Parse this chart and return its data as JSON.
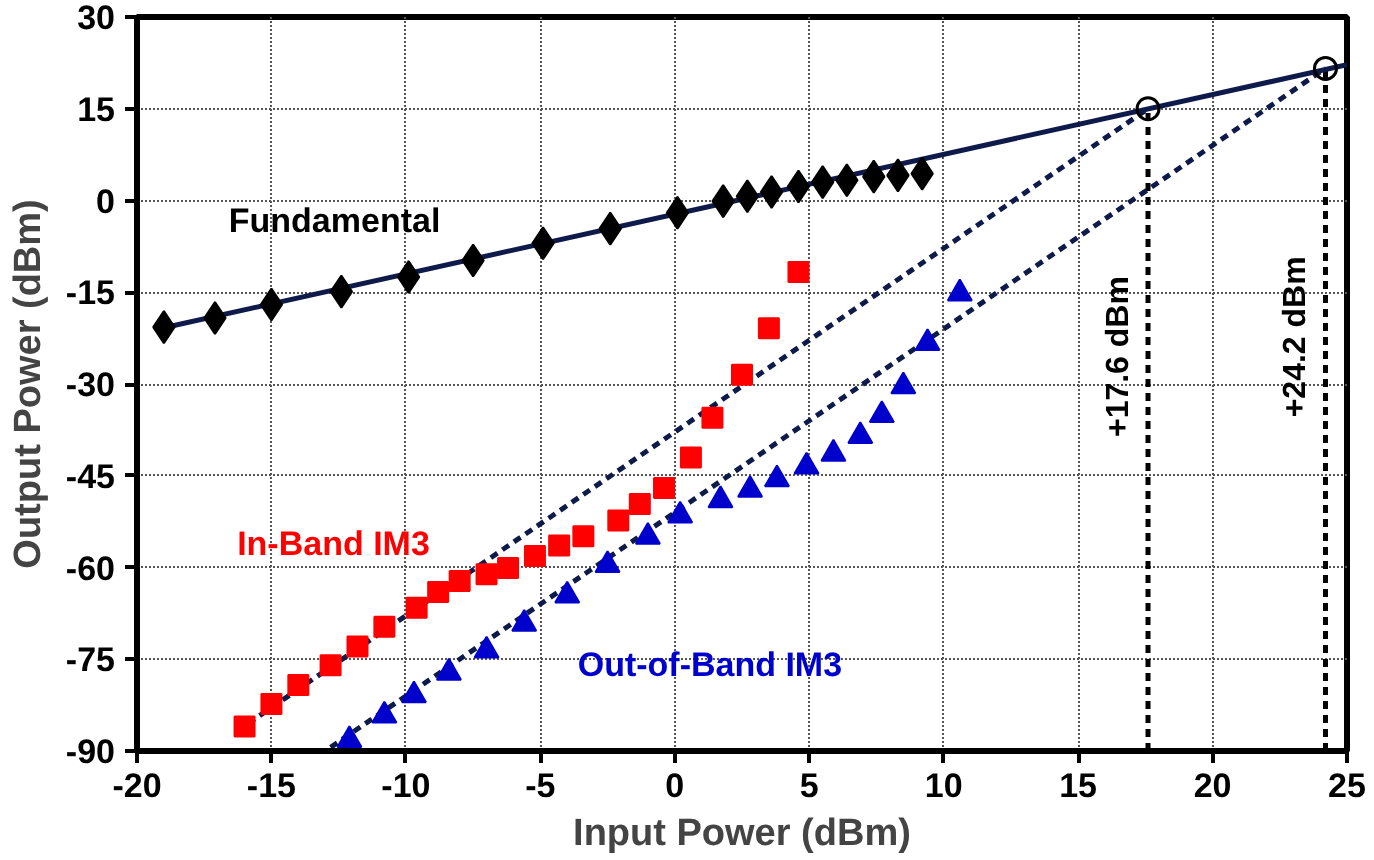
{
  "chart_data": {
    "type": "scatter",
    "xlabel": "Input Power (dBm)",
    "ylabel": "Output Power (dBm)",
    "xlim": [
      -20,
      25
    ],
    "xticks": [
      -20,
      -15,
      -10,
      -5,
      0,
      5,
      10,
      15,
      20,
      25
    ],
    "ylim": [
      -90,
      30
    ],
    "yticks": [
      -90,
      -75,
      -60,
      -45,
      -30,
      -15,
      0,
      15,
      30
    ],
    "grid": true,
    "series": [
      {
        "type": "line",
        "color": "#0d1a4a",
        "line_style": "solid",
        "x": [
          -19.0,
          25.0
        ],
        "values": [
          -20.8,
          22.2
        ]
      },
      {
        "type": "line",
        "color": "#0d1a4a",
        "line_style": "dashed",
        "x": [
          -16.3,
          17.6
        ],
        "values": [
          -86.8,
          15.0
        ]
      },
      {
        "type": "line",
        "color": "#0d1a4a",
        "line_style": "dashed",
        "x": [
          -12.8,
          24.2
        ],
        "values": [
          -89.4,
          21.6
        ]
      },
      {
        "name": "Fundamental",
        "color": "#000000",
        "marker": "diamond",
        "x": [
          -19.0,
          -17.1,
          -15.0,
          -12.4,
          -9.9,
          -7.5,
          -4.9,
          -2.4,
          0.1,
          1.8,
          2.7,
          3.6,
          4.6,
          5.5,
          6.4,
          7.4,
          8.3,
          9.2
        ],
        "values": [
          -20.7,
          -19.2,
          -17.0,
          -14.9,
          -12.5,
          -9.8,
          -7.0,
          -4.6,
          -2.0,
          -0.1,
          0.7,
          1.4,
          2.3,
          3.0,
          3.3,
          3.9,
          4.1,
          4.4
        ]
      },
      {
        "name": "In-Band IM3",
        "color": "#ff0000",
        "marker": "square",
        "x": [
          -16.0,
          -15.0,
          -14.0,
          -12.8,
          -11.8,
          -10.8,
          -9.6,
          -8.8,
          -8.0,
          -7.0,
          -6.2,
          -5.2,
          -4.3,
          -3.4,
          -2.1,
          -1.3,
          -0.4,
          0.6,
          1.4,
          2.5,
          3.5,
          4.6
        ],
        "values": [
          -86.0,
          -82.3,
          -79.2,
          -76.0,
          -72.9,
          -69.7,
          -66.6,
          -64.0,
          -62.2,
          -61.1,
          -60.1,
          -58.1,
          -56.4,
          -54.9,
          -52.3,
          -49.6,
          -47.0,
          -42.0,
          -35.5,
          -28.5,
          -20.9,
          -11.7
        ]
      },
      {
        "name": "Out-of-Band IM3",
        "color": "#0000cc",
        "marker": "triangle",
        "x": [
          -12.1,
          -10.8,
          -9.7,
          -8.4,
          -7.0,
          -5.6,
          -4.0,
          -2.5,
          -1.0,
          0.2,
          1.7,
          2.8,
          3.8,
          4.9,
          5.9,
          6.9,
          7.7,
          8.5,
          9.4,
          10.6
        ],
        "values": [
          -88.2,
          -84.2,
          -80.9,
          -77.2,
          -73.6,
          -69.2,
          -64.6,
          -59.6,
          -55.0,
          -51.5,
          -49.0,
          -47.3,
          -45.6,
          -43.5,
          -41.4,
          -38.5,
          -35.1,
          -30.4,
          -23.3,
          -15.2
        ]
      },
      {
        "color": "#000000",
        "marker": "circle",
        "x": [
          17.6,
          24.2
        ],
        "values": [
          15.0,
          21.6
        ]
      }
    ],
    "ref_lines": [
      {
        "axis": "x",
        "value": 17.6,
        "label": "+17.6 dBm",
        "color": "#000000",
        "line_style": "dashed"
      },
      {
        "axis": "x",
        "value": 24.2,
        "label": "+24.2 dBm",
        "color": "#000000",
        "line_style": "dashed"
      }
    ]
  }
}
